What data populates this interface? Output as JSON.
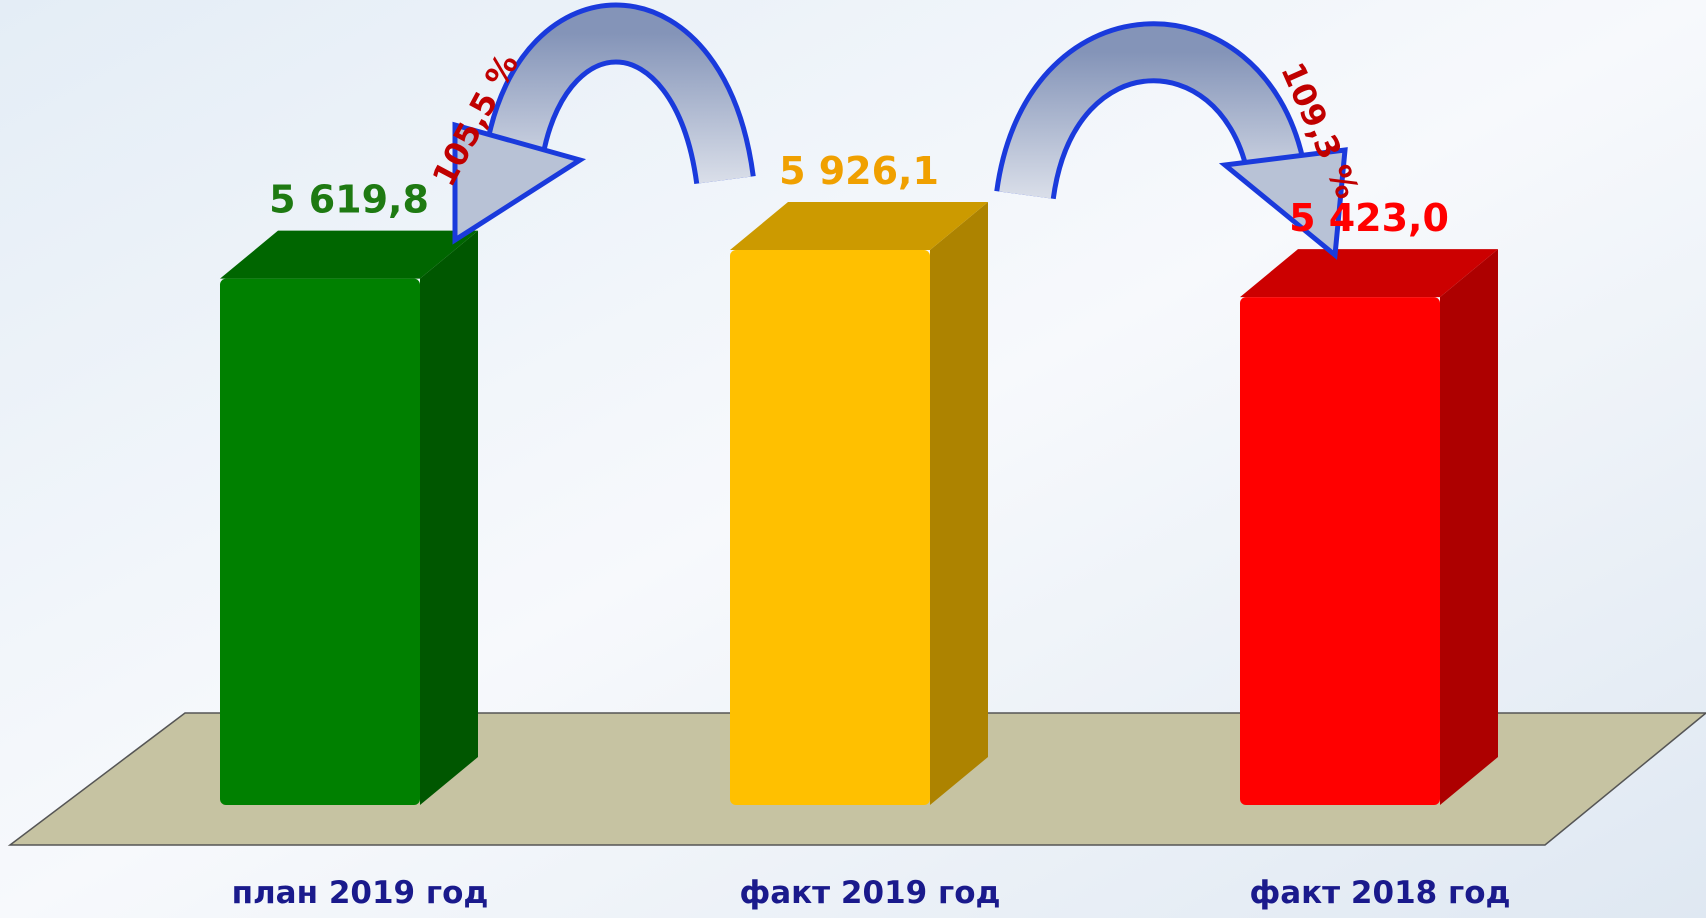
{
  "chart_data": {
    "type": "bar3d",
    "categories": [
      "план 2019 год",
      "факт 2019 год",
      "факт 2018 год"
    ],
    "values": [
      5619.8,
      5926.1,
      5423.0
    ],
    "value_labels": [
      "5 619,8",
      "5 926,1",
      "5 423,0"
    ],
    "colors": [
      "#008000",
      "#ffc000",
      "#ff0000"
    ],
    "label_colors": [
      "#1e7a12",
      "#f0a000",
      "#ff0000"
    ],
    "annotations": [
      "105,5 %",
      "109,3 %"
    ]
  }
}
